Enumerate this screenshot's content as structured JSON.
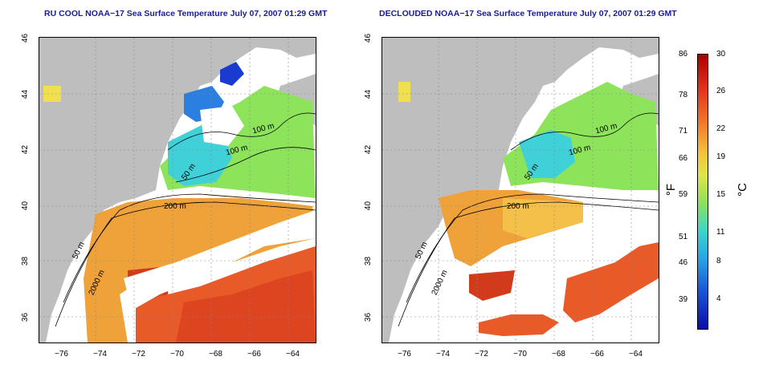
{
  "panels": [
    {
      "id": "left",
      "title": "RU COOL NOAA−17 Sea Surface Temperature July 07, 2007 01:29 GMT"
    },
    {
      "id": "right",
      "title": "DECLOUDED NOAA−17 Sea Surface Temperature July 07, 2007 01:29 GMT"
    }
  ],
  "axes": {
    "lon_ticks": [
      "−76",
      "−74",
      "−72",
      "−70",
      "−68",
      "−66",
      "−64"
    ],
    "lat_ticks": [
      "46",
      "44",
      "42",
      "40",
      "38",
      "36"
    ]
  },
  "contour_labels": [
    "100 m",
    "100 m",
    "50 m",
    "200 m",
    "50 m",
    "2000 m"
  ],
  "colorbar": {
    "fahrenheit_labels": [
      "86",
      "78",
      "71",
      "66",
      "59",
      "51",
      "46",
      "39"
    ],
    "celsius_labels": [
      "30",
      "26",
      "22",
      "19",
      "15",
      "11",
      "8",
      "4"
    ],
    "unit_f": "°F",
    "unit_c": "°C"
  },
  "colors": {
    "land": "#bebebe",
    "cold": "#1a2bd0",
    "cool": "#27c6e6",
    "mid": "#7fe25a",
    "warm": "#f5b83a",
    "hot": "#d92416",
    "title": "#1a1a9a"
  }
}
